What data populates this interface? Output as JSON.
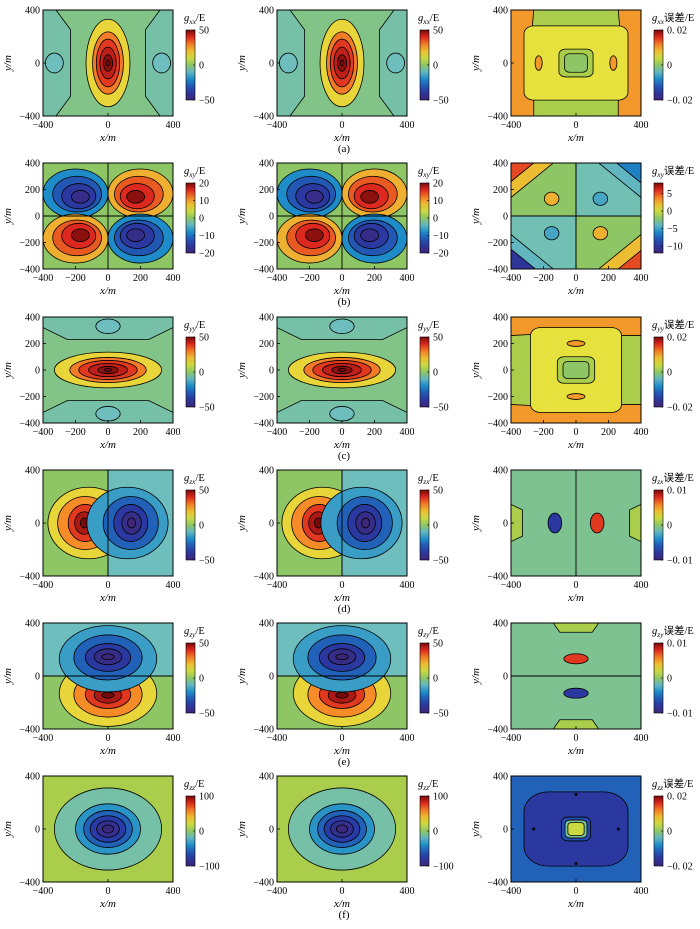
{
  "figure": {
    "row_labels": [
      "(a)",
      "(b)",
      "(c)",
      "(d)",
      "(e)",
      "(f)"
    ]
  },
  "chart_data": [
    {
      "type": "heatmap",
      "row": 0,
      "col": 0,
      "component": "xx",
      "pattern": "xx",
      "title_sub": "xx",
      "title_suffix": "/E",
      "xlabel": "x/m",
      "ylabel": "y/m",
      "xlim": [
        -400,
        400
      ],
      "ylim": [
        -400,
        400
      ],
      "xticks": [
        "−400",
        "0",
        "400"
      ],
      "yticks": [
        "400",
        "0",
        "−400"
      ],
      "colorbar": {
        "ticks": [
          "50",
          "0",
          "−50"
        ],
        "range": [
          -50,
          50
        ]
      }
    },
    {
      "type": "heatmap",
      "row": 0,
      "col": 1,
      "component": "xx",
      "pattern": "xx",
      "title_sub": "xx",
      "title_suffix": "/E",
      "xlabel": "x/m",
      "ylabel": "y/m",
      "xlim": [
        -400,
        400
      ],
      "ylim": [
        -400,
        400
      ],
      "xticks": [
        "−400",
        "0",
        "400"
      ],
      "yticks": [
        "400",
        "0",
        "−400"
      ],
      "colorbar": {
        "ticks": [
          "50",
          "0",
          "−50"
        ],
        "range": [
          -50,
          50
        ]
      }
    },
    {
      "type": "heatmap",
      "row": 0,
      "col": 2,
      "component": "xx error",
      "pattern": "xxErr",
      "title_sub": "xx",
      "title_suffix": "误差/E",
      "xlabel": "x/m",
      "ylabel": "y/m",
      "xlim": [
        -400,
        400
      ],
      "ylim": [
        -400,
        400
      ],
      "xticks": [
        "−400",
        "0",
        "400"
      ],
      "yticks": [
        "400",
        "0",
        "−400"
      ],
      "colorbar": {
        "ticks": [
          "0. 02",
          "0",
          "−0. 02"
        ],
        "range": [
          -0.02,
          0.02
        ]
      }
    },
    {
      "type": "heatmap",
      "row": 1,
      "col": 0,
      "component": "xy",
      "pattern": "xy",
      "title_sub": "xy",
      "title_suffix": "/E",
      "xlabel": "x/m",
      "ylabel": "y/m",
      "xlim": [
        -400,
        400
      ],
      "ylim": [
        -400,
        400
      ],
      "xticks": [
        "−400",
        "−200",
        "0",
        "200",
        "400"
      ],
      "yticks": [
        "400",
        "200",
        "0",
        "−200",
        "−400"
      ],
      "colorbar": {
        "ticks": [
          "20",
          "10",
          "0",
          "−10",
          "−20"
        ],
        "range": [
          -20,
          20
        ]
      }
    },
    {
      "type": "heatmap",
      "row": 1,
      "col": 1,
      "component": "xy",
      "pattern": "xy",
      "title_sub": "xy",
      "title_suffix": "/E",
      "xlabel": "x/m",
      "ylabel": "y/m",
      "xlim": [
        -400,
        400
      ],
      "ylim": [
        -400,
        400
      ],
      "xticks": [
        "−400",
        "−200",
        "0",
        "200",
        "400"
      ],
      "yticks": [
        "400",
        "200",
        "0",
        "−200",
        "−400"
      ],
      "colorbar": {
        "ticks": [
          "20",
          "10",
          "0",
          "−10",
          "−20"
        ],
        "range": [
          -20,
          20
        ]
      }
    },
    {
      "type": "heatmap",
      "row": 1,
      "col": 2,
      "component": "xy error",
      "pattern": "xyErr",
      "title_sub": "xy",
      "title_suffix": "误差/E",
      "xlabel": "x/m",
      "ylabel": "y/m",
      "xlim": [
        -400,
        400
      ],
      "ylim": [
        -400,
        400
      ],
      "xticks": [
        "−400",
        "−200",
        "0",
        "200",
        "400"
      ],
      "yticks": [
        "400",
        "200",
        "0",
        "−200",
        "−400"
      ],
      "colorbar": {
        "ticks": [
          "5",
          "0",
          "−5",
          "−10"
        ],
        "range": [
          -12,
          8
        ]
      }
    },
    {
      "type": "heatmap",
      "row": 2,
      "col": 0,
      "component": "yy",
      "pattern": "yy",
      "title_sub": "yy",
      "title_suffix": "/E",
      "xlabel": "x/m",
      "ylabel": "y/m",
      "xlim": [
        -400,
        400
      ],
      "ylim": [
        -400,
        400
      ],
      "xticks": [
        "−400",
        "−200",
        "0",
        "200",
        "400"
      ],
      "yticks": [
        "400",
        "200",
        "0",
        "−200",
        "−400"
      ],
      "colorbar": {
        "ticks": [
          "50",
          "0",
          "−50"
        ],
        "range": [
          -50,
          50
        ]
      }
    },
    {
      "type": "heatmap",
      "row": 2,
      "col": 1,
      "component": "yy",
      "pattern": "yy",
      "title_sub": "yy",
      "title_suffix": "/E",
      "xlabel": "x/m",
      "ylabel": "y/m",
      "xlim": [
        -400,
        400
      ],
      "ylim": [
        -400,
        400
      ],
      "xticks": [
        "−400",
        "−200",
        "0",
        "200",
        "400"
      ],
      "yticks": [
        "400",
        "200",
        "0",
        "−200",
        "−400"
      ],
      "colorbar": {
        "ticks": [
          "50",
          "0",
          "−50"
        ],
        "range": [
          -50,
          50
        ]
      }
    },
    {
      "type": "heatmap",
      "row": 2,
      "col": 2,
      "component": "yy error",
      "pattern": "yyErr",
      "title_sub": "yy",
      "title_suffix": "误差/E",
      "xlabel": "x/m",
      "ylabel": "y/m",
      "xlim": [
        -400,
        400
      ],
      "ylim": [
        -400,
        400
      ],
      "xticks": [
        "−400",
        "−200",
        "0",
        "200",
        "400"
      ],
      "yticks": [
        "400",
        "200",
        "0",
        "−200",
        "−400"
      ],
      "colorbar": {
        "ticks": [
          "0. 02",
          "0",
          "−0. 02"
        ],
        "range": [
          -0.02,
          0.02
        ]
      }
    },
    {
      "type": "heatmap",
      "row": 3,
      "col": 0,
      "component": "zx",
      "pattern": "zx",
      "title_sub": "zx",
      "title_suffix": "/E",
      "xlabel": "x/m",
      "ylabel": "y/m",
      "xlim": [
        -400,
        400
      ],
      "ylim": [
        -400,
        400
      ],
      "xticks": [
        "−400",
        "0",
        "400"
      ],
      "yticks": [
        "400",
        "0",
        "−400"
      ],
      "colorbar": {
        "ticks": [
          "50",
          "0",
          "−50"
        ],
        "range": [
          -50,
          50
        ]
      }
    },
    {
      "type": "heatmap",
      "row": 3,
      "col": 1,
      "component": "zx",
      "pattern": "zx",
      "title_sub": "zx",
      "title_suffix": "/E",
      "xlabel": "x/m",
      "ylabel": "y/m",
      "xlim": [
        -400,
        400
      ],
      "ylim": [
        -400,
        400
      ],
      "xticks": [
        "−400",
        "0",
        "400"
      ],
      "yticks": [
        "400",
        "0",
        "−400"
      ],
      "colorbar": {
        "ticks": [
          "50",
          "0",
          "−50"
        ],
        "range": [
          -50,
          50
        ]
      }
    },
    {
      "type": "heatmap",
      "row": 3,
      "col": 2,
      "component": "zx error",
      "pattern": "zxErr",
      "title_sub": "zx",
      "title_suffix": "误差/E",
      "xlabel": "x/m",
      "ylabel": "y/m",
      "xlim": [
        -400,
        400
      ],
      "ylim": [
        -400,
        400
      ],
      "xticks": [
        "−400",
        "0",
        "400"
      ],
      "yticks": [
        "400",
        "0",
        "−400"
      ],
      "colorbar": {
        "ticks": [
          "0. 01",
          "0",
          "−0. 01"
        ],
        "range": [
          -0.01,
          0.01
        ]
      }
    },
    {
      "type": "heatmap",
      "row": 4,
      "col": 0,
      "component": "zy",
      "pattern": "zy",
      "title_sub": "zy",
      "title_suffix": "/E",
      "xlabel": "x/m",
      "ylabel": "y/m",
      "xlim": [
        -400,
        400
      ],
      "ylim": [
        -400,
        400
      ],
      "xticks": [
        "−400",
        "0",
        "400"
      ],
      "yticks": [
        "400",
        "0",
        "−400"
      ],
      "colorbar": {
        "ticks": [
          "50",
          "0",
          "−50"
        ],
        "range": [
          -50,
          50
        ]
      }
    },
    {
      "type": "heatmap",
      "row": 4,
      "col": 1,
      "component": "zy",
      "pattern": "zy",
      "title_sub": "zy",
      "title_suffix": "/E",
      "xlabel": "x/m",
      "ylabel": "y/m",
      "xlim": [
        -400,
        400
      ],
      "ylim": [
        -400,
        400
      ],
      "xticks": [
        "−400",
        "0",
        "400"
      ],
      "yticks": [
        "400",
        "0",
        "−400"
      ],
      "colorbar": {
        "ticks": [
          "50",
          "0",
          "−50"
        ],
        "range": [
          -50,
          50
        ]
      }
    },
    {
      "type": "heatmap",
      "row": 4,
      "col": 2,
      "component": "zy error",
      "pattern": "zyErr",
      "title_sub": "zy",
      "title_suffix": "误差/E",
      "xlabel": "x/m",
      "ylabel": "y/m",
      "xlim": [
        -400,
        400
      ],
      "ylim": [
        -400,
        400
      ],
      "xticks": [
        "−400",
        "0",
        "400"
      ],
      "yticks": [
        "400",
        "0",
        "−400"
      ],
      "colorbar": {
        "ticks": [
          "0. 01",
          "0",
          "−0. 01"
        ],
        "range": [
          -0.01,
          0.01
        ]
      }
    },
    {
      "type": "heatmap",
      "row": 5,
      "col": 0,
      "component": "zz",
      "pattern": "zz",
      "title_sub": "zz",
      "title_suffix": "/E",
      "xlabel": "x/m",
      "ylabel": "y/m",
      "xlim": [
        -400,
        400
      ],
      "ylim": [
        -400,
        400
      ],
      "xticks": [
        "−400",
        "0",
        "400"
      ],
      "yticks": [
        "400",
        "0",
        "−400"
      ],
      "colorbar": {
        "ticks": [
          "100",
          "0",
          "−100"
        ],
        "range": [
          -100,
          100
        ]
      }
    },
    {
      "type": "heatmap",
      "row": 5,
      "col": 1,
      "component": "zz",
      "pattern": "zz",
      "title_sub": "zz",
      "title_suffix": "/E",
      "xlabel": "x/m",
      "ylabel": "y/m",
      "xlim": [
        -400,
        400
      ],
      "ylim": [
        -400,
        400
      ],
      "xticks": [
        "−400",
        "0",
        "400"
      ],
      "yticks": [
        "400",
        "0",
        "−400"
      ],
      "colorbar": {
        "ticks": [
          "100",
          "0",
          "−100"
        ],
        "range": [
          -100,
          100
        ]
      }
    },
    {
      "type": "heatmap",
      "row": 5,
      "col": 2,
      "component": "zz error",
      "pattern": "zzErr",
      "title_sub": "zz",
      "title_suffix": "误差/E",
      "xlabel": "x/m",
      "ylabel": "y/m",
      "xlim": [
        -400,
        400
      ],
      "ylim": [
        -400,
        400
      ],
      "xticks": [
        "−400",
        "0",
        "400"
      ],
      "yticks": [
        "400",
        "0",
        "−400"
      ],
      "colorbar": {
        "ticks": [
          "0. 02",
          "0",
          "−0. 02"
        ],
        "range": [
          -0.02,
          0.02
        ]
      }
    }
  ]
}
